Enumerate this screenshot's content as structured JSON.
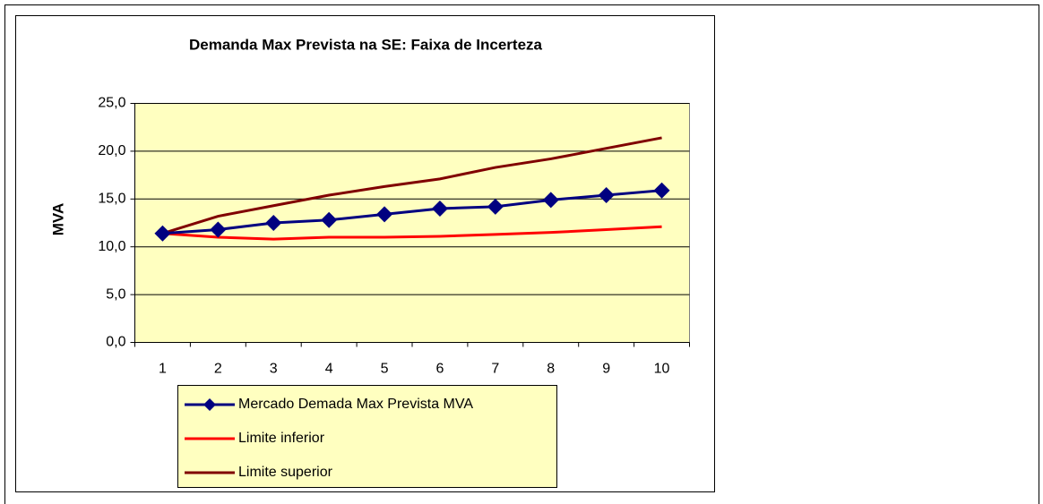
{
  "chart_data": {
    "type": "line",
    "title": "Demanda Max Prevista na SE: Faixa de Incerteza",
    "ylabel": "MVA",
    "categories": [
      "1",
      "2",
      "3",
      "4",
      "5",
      "6",
      "7",
      "8",
      "9",
      "10"
    ],
    "series": [
      {
        "name": "Mercado Demada Max Prevista MVA",
        "color": "#000080",
        "marker": "diamond",
        "values": [
          11.4,
          11.8,
          12.5,
          12.8,
          13.4,
          14.0,
          14.2,
          14.9,
          15.4,
          15.9
        ]
      },
      {
        "name": "Limite inferior",
        "color": "#ff0000",
        "values": [
          11.4,
          11.0,
          10.8,
          11.0,
          11.0,
          11.1,
          11.3,
          11.5,
          11.8,
          12.1
        ]
      },
      {
        "name": "Limite superior",
        "color": "#800000",
        "values": [
          11.4,
          13.2,
          14.3,
          15.4,
          16.3,
          17.1,
          18.3,
          19.2,
          20.3,
          21.4
        ]
      }
    ],
    "ylim": [
      0,
      25
    ],
    "yticks": [
      {
        "value": 0,
        "label": "0,0"
      },
      {
        "value": 5,
        "label": "5,0"
      },
      {
        "value": 10,
        "label": "10,0"
      },
      {
        "value": 15,
        "label": "15,0"
      },
      {
        "value": 20,
        "label": "20,0"
      },
      {
        "value": 25,
        "label": "25,0"
      }
    ],
    "grid": true
  }
}
